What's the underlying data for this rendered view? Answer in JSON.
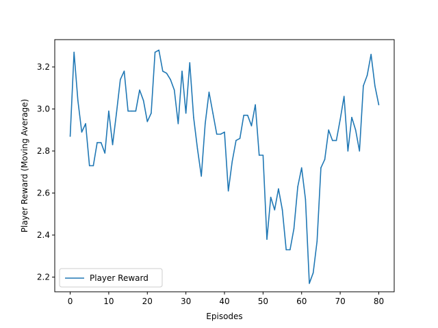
{
  "chart_data": {
    "type": "line",
    "title": "",
    "xlabel": "Episodes",
    "ylabel": "Player Reward (Moving Average)",
    "xlim": [
      -4,
      84
    ],
    "ylim": [
      2.13,
      3.33
    ],
    "xticks": [
      0,
      10,
      20,
      30,
      40,
      50,
      60,
      70,
      80
    ],
    "yticks": [
      2.2,
      2.4,
      2.6,
      2.8,
      3.0,
      3.2
    ],
    "grid": false,
    "legend_position": "lower-left",
    "series": [
      {
        "name": "Player Reward",
        "color": "#1f77b4",
        "x": [
          0,
          1,
          2,
          3,
          4,
          5,
          6,
          7,
          8,
          9,
          10,
          11,
          12,
          13,
          14,
          15,
          16,
          17,
          18,
          19,
          20,
          21,
          22,
          23,
          24,
          25,
          26,
          27,
          28,
          29,
          30,
          31,
          32,
          33,
          34,
          35,
          36,
          37,
          38,
          39,
          40,
          41,
          42,
          43,
          44,
          45,
          46,
          47,
          48,
          49,
          50,
          51,
          52,
          53,
          54,
          55,
          56,
          57,
          58,
          59,
          60,
          61,
          62,
          63,
          64,
          65,
          66,
          67,
          68,
          69,
          70,
          71,
          72,
          73,
          74,
          75,
          76,
          77,
          78,
          79,
          80
        ],
        "values": [
          2.87,
          3.27,
          3.04,
          2.89,
          2.93,
          2.73,
          2.73,
          2.84,
          2.84,
          2.79,
          2.99,
          2.83,
          2.98,
          3.14,
          3.18,
          2.99,
          2.99,
          2.99,
          3.09,
          3.04,
          2.94,
          2.98,
          3.27,
          3.28,
          3.18,
          3.17,
          3.14,
          3.09,
          2.93,
          3.18,
          2.98,
          3.22,
          2.96,
          2.81,
          2.68,
          2.93,
          3.08,
          2.98,
          2.88,
          2.88,
          2.89,
          2.61,
          2.75,
          2.85,
          2.86,
          2.97,
          2.97,
          2.92,
          3.02,
          2.78,
          2.78,
          2.38,
          2.58,
          2.52,
          2.62,
          2.52,
          2.33,
          2.33,
          2.43,
          2.63,
          2.72,
          2.57,
          2.17,
          2.22,
          2.37,
          2.72,
          2.76,
          2.9,
          2.85,
          2.85,
          2.95,
          3.06,
          2.8,
          2.96,
          2.9,
          2.8,
          3.11,
          3.16,
          3.26,
          3.11,
          3.02
        ]
      }
    ]
  }
}
